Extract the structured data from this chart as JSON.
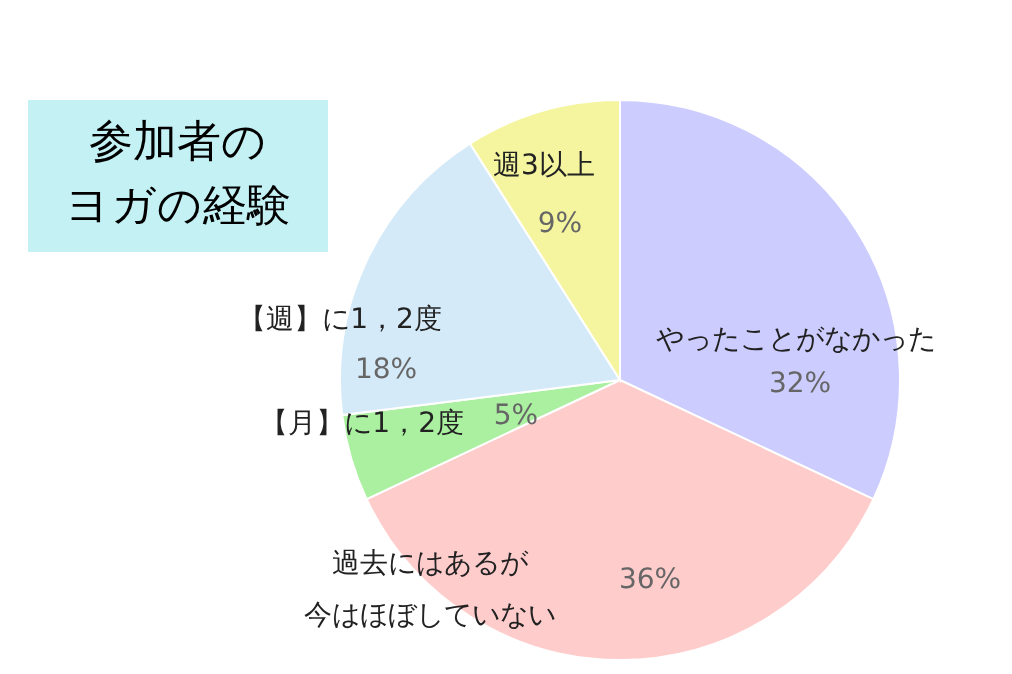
{
  "chart_data": {
    "type": "pie",
    "subtitle": "参加者のヨガの経験",
    "categories": [
      "やったことがなかった",
      "過去にはあるが今はほぼしていない",
      "【月】に1，2度",
      "【週】に1，2度",
      "週3以上"
    ],
    "values": [
      32,
      36,
      5,
      18,
      9
    ],
    "colors": [
      "#ccccff",
      "#ffcccc",
      "#aaf0a0",
      "#d5eaf8",
      "#f5f5a0"
    ],
    "value_labels": [
      "32%",
      "36%",
      "5%",
      "18%",
      "9%"
    ],
    "legend": false
  }
}
